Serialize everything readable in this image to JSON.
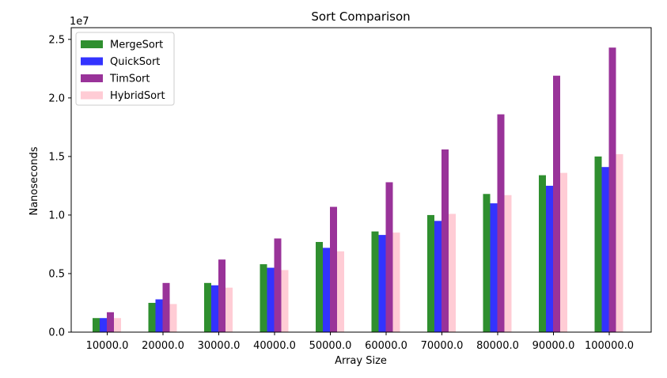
{
  "chart_data": {
    "type": "bar",
    "title": "Sort Comparison",
    "xlabel": "Array Size",
    "ylabel": "Nanoseconds",
    "y_offset_label": "1e7",
    "ylim": [
      0,
      2.6
    ],
    "yticks": [
      0.0,
      0.5,
      1.0,
      1.5,
      2.0,
      2.5
    ],
    "ytick_labels": [
      "0.0",
      "0.5",
      "1.0",
      "1.5",
      "2.0",
      "2.5"
    ],
    "categories": [
      "10000.0",
      "20000.0",
      "30000.0",
      "40000.0",
      "50000.0",
      "60000.0",
      "70000.0",
      "80000.0",
      "90000.0",
      "100000.0"
    ],
    "legend_position": "top-left",
    "series": [
      {
        "name": "MergeSort",
        "color": "#2f8f2f",
        "values": [
          0.12,
          0.25,
          0.42,
          0.58,
          0.77,
          0.86,
          1.0,
          1.18,
          1.34,
          1.5
        ]
      },
      {
        "name": "QuickSort",
        "color": "#3333ff",
        "values": [
          0.12,
          0.28,
          0.4,
          0.55,
          0.72,
          0.83,
          0.95,
          1.1,
          1.25,
          1.41
        ]
      },
      {
        "name": "TimSort",
        "color": "#993399",
        "values": [
          0.17,
          0.42,
          0.62,
          0.8,
          1.07,
          1.28,
          1.56,
          1.86,
          2.19,
          2.43
        ]
      },
      {
        "name": "HybridSort",
        "color": "#ffccd5",
        "values": [
          0.12,
          0.24,
          0.38,
          0.53,
          0.69,
          0.85,
          1.01,
          1.17,
          1.36,
          1.52
        ]
      }
    ]
  }
}
